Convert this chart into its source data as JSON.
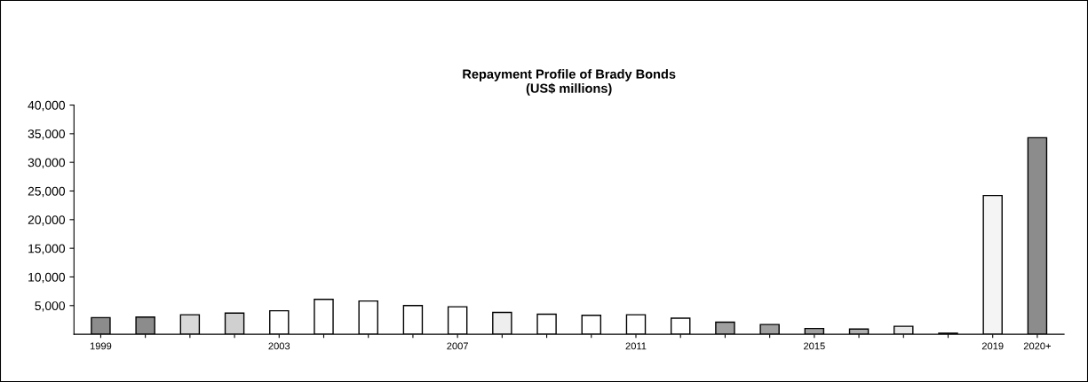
{
  "chart_data": {
    "type": "bar",
    "title": "Repayment Profile of Brady Bonds\n(US$ millions)",
    "categories": [
      "1999",
      null,
      null,
      null,
      "2003",
      null,
      null,
      null,
      "2007",
      null,
      null,
      null,
      "2011",
      null,
      null,
      null,
      "2015",
      null,
      null,
      null,
      "2019",
      "2020+"
    ],
    "values": [
      2900,
      3000,
      3400,
      3700,
      4100,
      6100,
      5800,
      5000,
      4800,
      3800,
      3500,
      3300,
      3400,
      2800,
      2100,
      1700,
      1000,
      900,
      1400,
      200,
      24200,
      34300
    ],
    "colors": [
      "#8c8c8c",
      "#8c8c8c",
      "#d8d8d8",
      "#d0d0d0",
      "#ffffff",
      "#ffffff",
      "#ffffff",
      "#ffffff",
      "#ffffff",
      "#eeeeee",
      "#ffffff",
      "#ffffff",
      "#ffffff",
      "#ffffff",
      "#a0a0a0",
      "#a0a0a0",
      "#a0a0a0",
      "#b0b0b0",
      "#e8e8e8",
      "#808080",
      "#f4f4f4",
      "#8c8c8c"
    ],
    "ylim": [
      0,
      40000
    ],
    "yticks": [
      {
        "value": 5000,
        "label": "5,000"
      },
      {
        "value": 10000,
        "label": "10,000"
      },
      {
        "value": 15000,
        "label": "15,000"
      },
      {
        "value": 20000,
        "label": "20,000"
      },
      {
        "value": 25000,
        "label": "25,000"
      },
      {
        "value": 30000,
        "label": "30,000"
      },
      {
        "value": 35000,
        "label": "35,000"
      },
      {
        "value": 40000,
        "label": "40,000"
      }
    ],
    "grid": false,
    "legend": false
  }
}
